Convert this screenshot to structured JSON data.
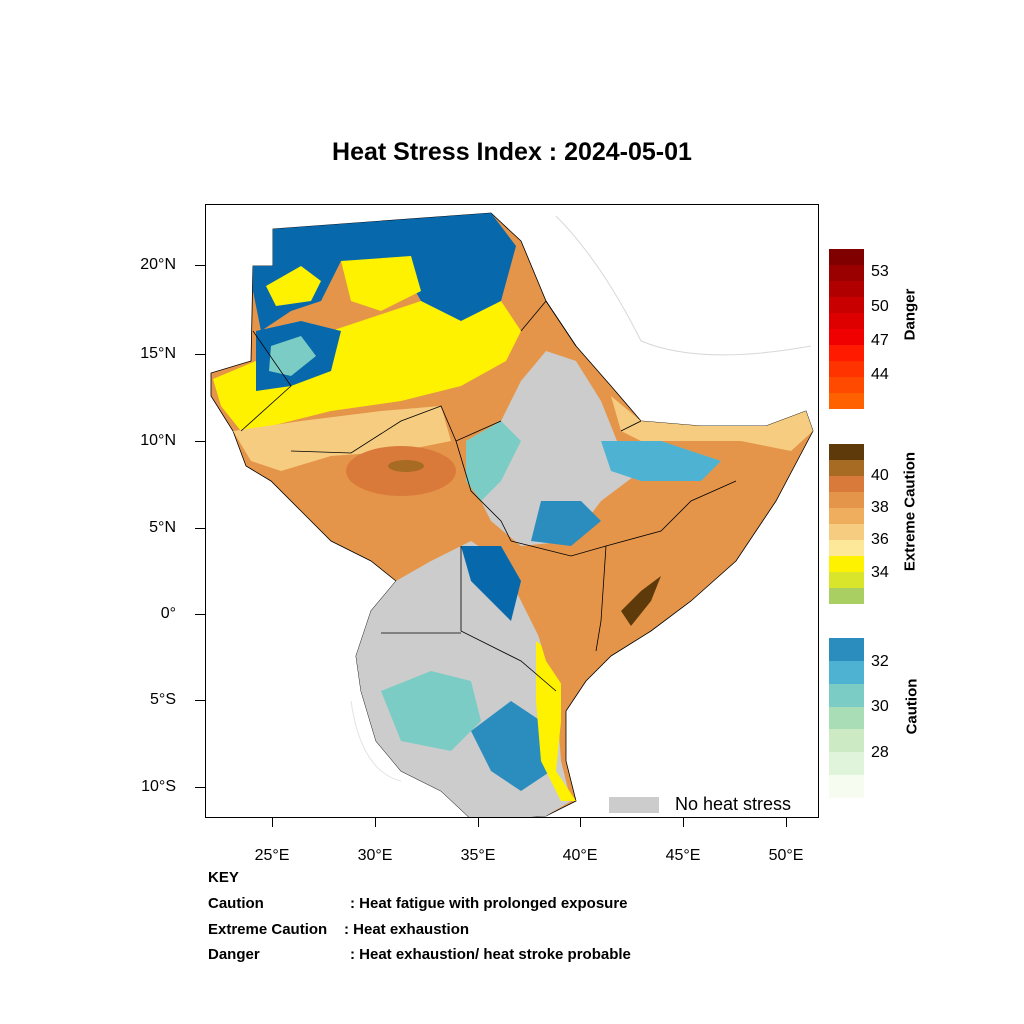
{
  "title": "Heat Stress Index : 2024-05-01",
  "axes": {
    "y_labels": [
      "20°N",
      "15°N",
      "10°N",
      "5°N",
      "0°",
      "5°S",
      "10°S"
    ],
    "x_labels": [
      "25°E",
      "30°E",
      "35°E",
      "40°E",
      "45°E",
      "50°E"
    ]
  },
  "legend": {
    "no_stress_label": "No heat stress",
    "no_stress_color": "#cccccc"
  },
  "colorbars": {
    "danger": {
      "title": "Danger",
      "labels": [
        "53",
        "50",
        "47",
        "44"
      ],
      "colors": [
        "#800000",
        "#9b0000",
        "#b00000",
        "#c80000",
        "#de0000",
        "#f00000",
        "#ff1a00",
        "#ff3300",
        "#ff4a00",
        "#ff6000"
      ]
    },
    "extreme": {
      "title": "Extreme Caution",
      "labels": [
        "40",
        "38",
        "36",
        "34"
      ],
      "colors": [
        "#5e3a0b",
        "#a86b24",
        "#d97a3a",
        "#e4954a",
        "#eeae5e",
        "#f5cc80",
        "#fde89a",
        "#fff200",
        "#d9e52a",
        "#a9ce62"
      ]
    },
    "caution": {
      "title": "Caution",
      "labels": [
        "32",
        "30",
        "28"
      ],
      "colors": [
        "#2b8cbe",
        "#4eb3d3",
        "#7bccc4",
        "#a8ddb5",
        "#ccebc5",
        "#e0f3db",
        "#f7fcf0"
      ]
    }
  },
  "key": {
    "heading": "KEY",
    "rows": [
      {
        "term": "Caution",
        "desc": ": Heat fatigue with prolonged exposure"
      },
      {
        "term": "Extreme Caution",
        "desc": ": Heat exhaustion"
      },
      {
        "term": "Danger",
        "desc": ": Heat exhaustion/ heat stroke probable"
      }
    ]
  }
}
